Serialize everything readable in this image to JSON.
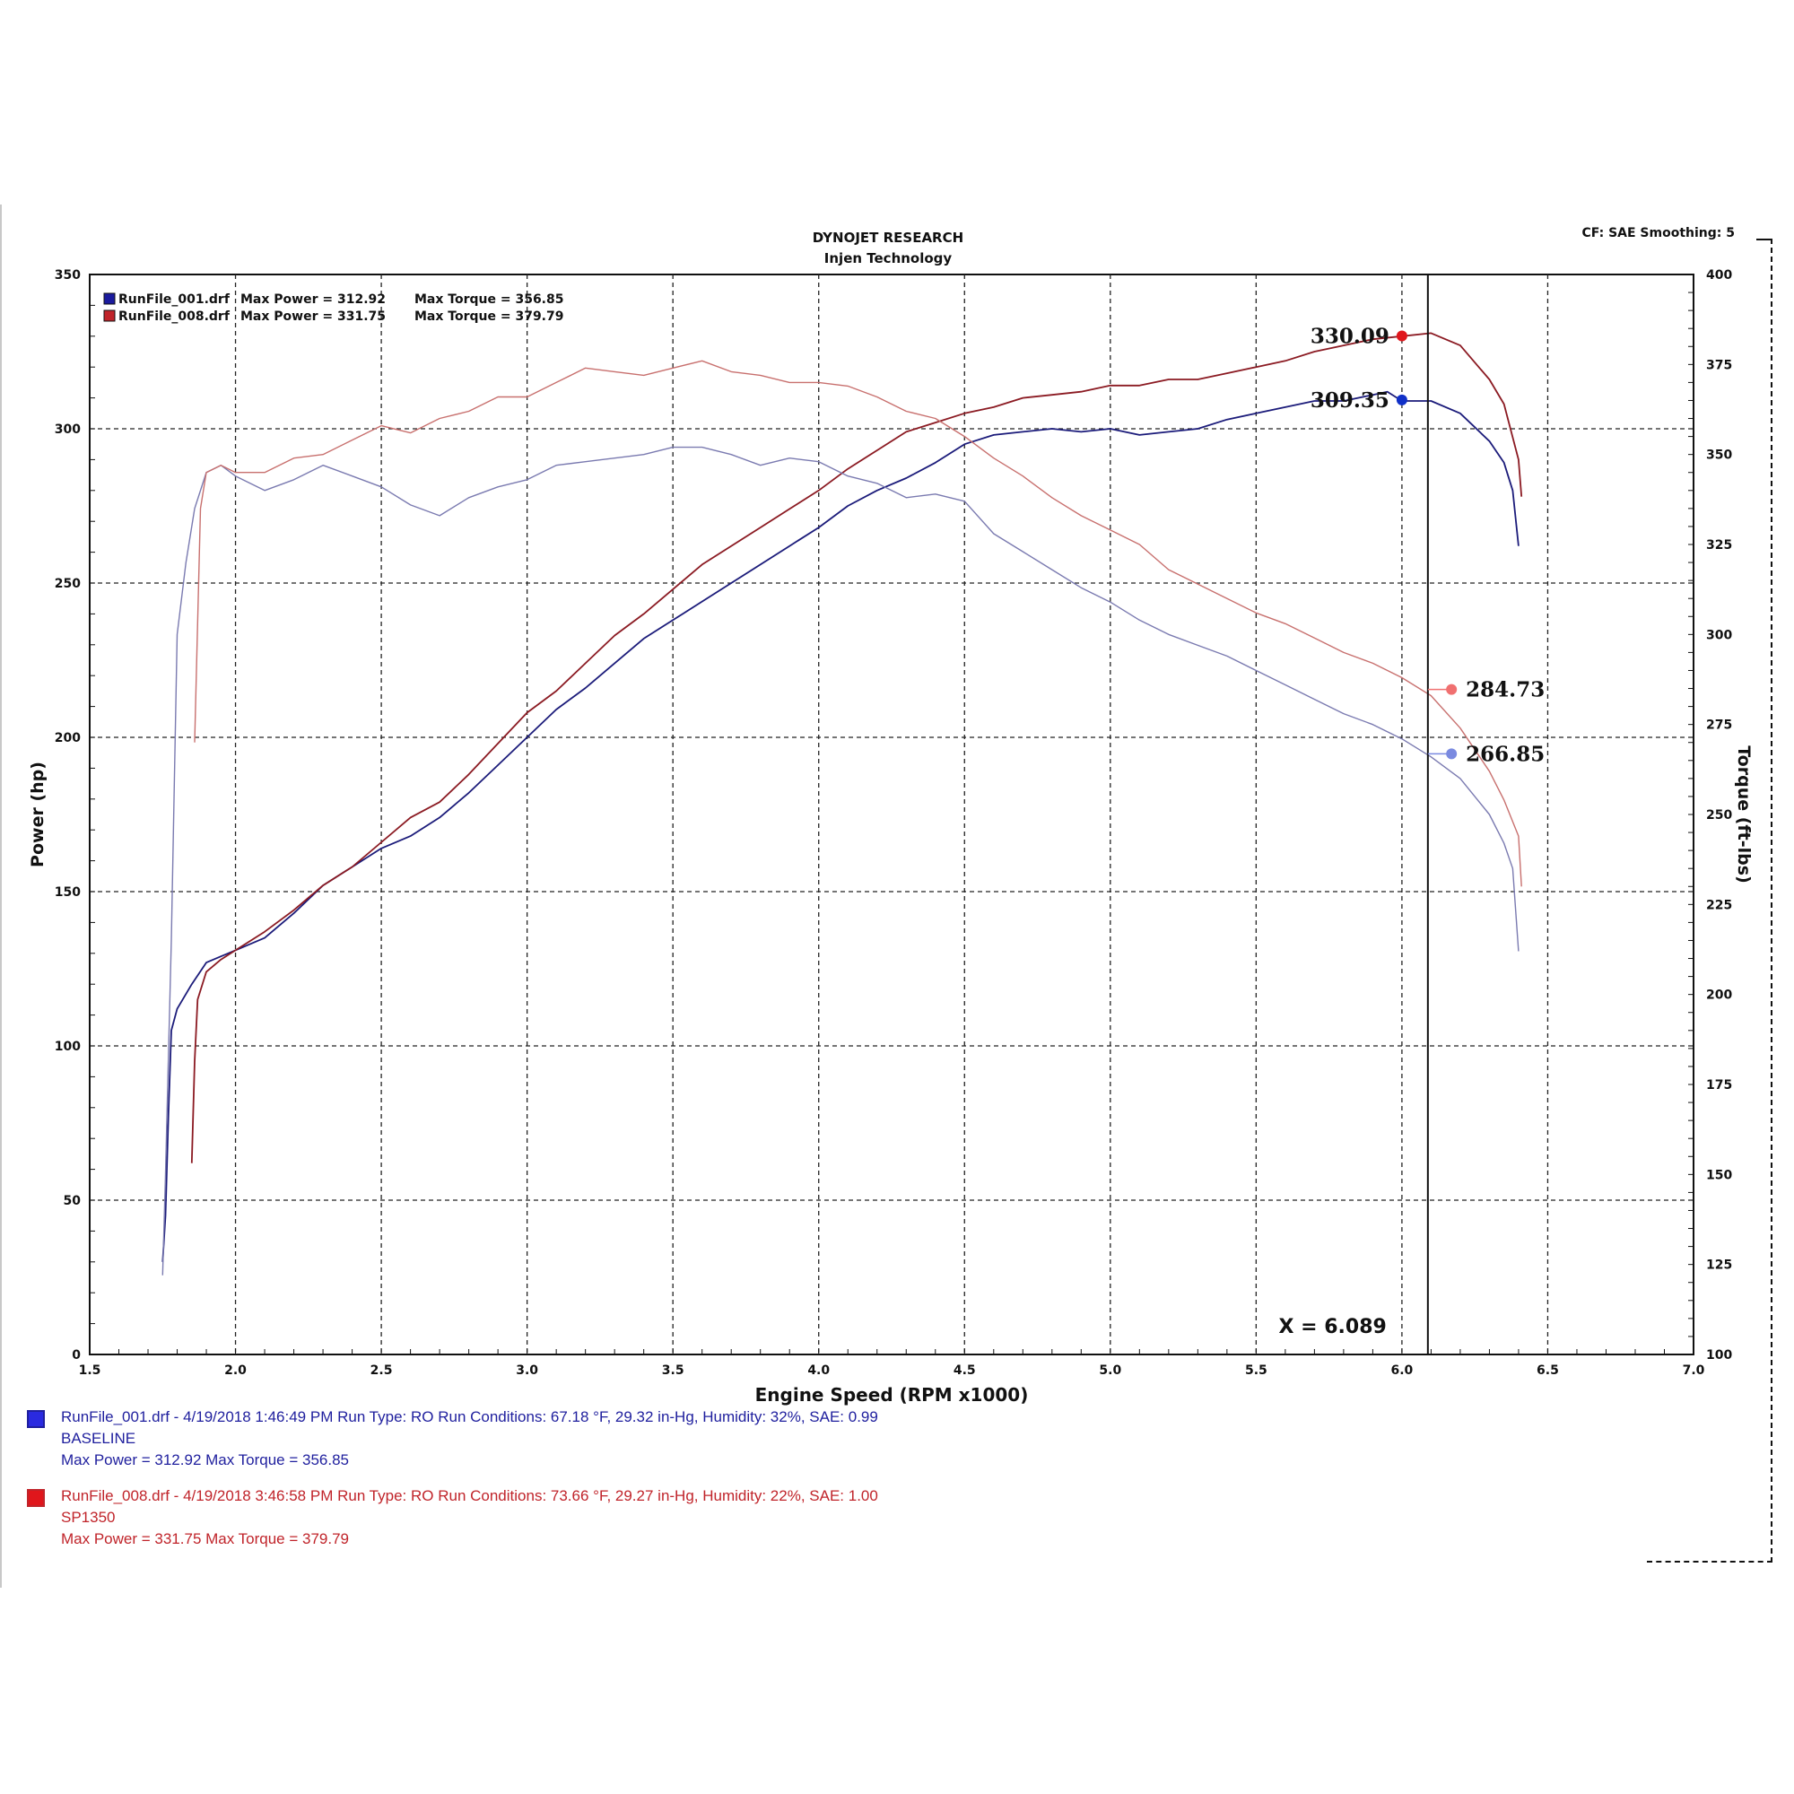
{
  "header": {
    "title": "DYNOJET RESEARCH",
    "subtitle": "Injen Technology",
    "cf_smoothing": "CF: SAE  Smoothing: 5"
  },
  "colors": {
    "baseline_power": "#1b1b7a",
    "baseline_torque": "#7a7ab0",
    "sp1350_power": "#8b1a22",
    "sp1350_torque": "#c8706e",
    "marker_red": "#e0161c",
    "marker_blue": "#1030c8",
    "marker_salmon": "#f07070",
    "marker_lightblue": "#7a8ae0"
  },
  "legend": [
    {
      "file": "RunFile_001.drf",
      "power_text": "Max Power = 312.92",
      "torque_text": "Max Torque = 356.85",
      "color": "#1b1b9e"
    },
    {
      "file": "RunFile_008.drf",
      "power_text": "Max Power = 331.75",
      "torque_text": "Max Torque = 379.79",
      "color": "#c0242a"
    }
  ],
  "annotations": {
    "power_sp1350": "330.09",
    "power_baseline": "309.35",
    "torque_sp1350": "284.73",
    "torque_baseline": "266.85",
    "cursor_label": "X = 6.089"
  },
  "chart_data": {
    "type": "line",
    "xlabel": "Engine Speed (RPM x1000)",
    "ylabel": "Power (hp)",
    "y2label": "Torque (ft-lbs)",
    "xlim": [
      1.5,
      7.0
    ],
    "ylim": [
      0,
      350
    ],
    "y2lim": [
      100,
      400
    ],
    "x_ticks": [
      "1.5",
      "2.0",
      "2.5",
      "3.0",
      "3.5",
      "4.0",
      "4.5",
      "5.0",
      "5.5",
      "6.0",
      "6.5",
      "7.0"
    ],
    "y_ticks": [
      "0",
      "50",
      "100",
      "150",
      "200",
      "250",
      "300",
      "350"
    ],
    "y2_ticks": [
      "100",
      "125",
      "150",
      "175",
      "200",
      "225",
      "250",
      "275",
      "300",
      "325",
      "350",
      "375",
      "400"
    ],
    "grid": true,
    "legend_position": "top-left",
    "cursor_x": 6.089,
    "series": [
      {
        "name": "RunFile_001.drf",
        "axis": "power",
        "points": [
          [
            1.75,
            30
          ],
          [
            1.76,
            45
          ],
          [
            1.77,
            78
          ],
          [
            1.78,
            105
          ],
          [
            1.8,
            112
          ],
          [
            1.85,
            120
          ],
          [
            1.9,
            127
          ],
          [
            1.95,
            129
          ],
          [
            2.0,
            131
          ],
          [
            2.1,
            135
          ],
          [
            2.2,
            143
          ],
          [
            2.3,
            152
          ],
          [
            2.4,
            158
          ],
          [
            2.5,
            164
          ],
          [
            2.6,
            168
          ],
          [
            2.7,
            174
          ],
          [
            2.8,
            182
          ],
          [
            2.9,
            191
          ],
          [
            3.0,
            200
          ],
          [
            3.1,
            209
          ],
          [
            3.2,
            216
          ],
          [
            3.3,
            224
          ],
          [
            3.4,
            232
          ],
          [
            3.5,
            238
          ],
          [
            3.6,
            244
          ],
          [
            3.7,
            250
          ],
          [
            3.8,
            256
          ],
          [
            3.9,
            262
          ],
          [
            4.0,
            268
          ],
          [
            4.1,
            275
          ],
          [
            4.2,
            280
          ],
          [
            4.3,
            284
          ],
          [
            4.4,
            289
          ],
          [
            4.5,
            295
          ],
          [
            4.6,
            298
          ],
          [
            4.7,
            299
          ],
          [
            4.8,
            300
          ],
          [
            4.9,
            299
          ],
          [
            5.0,
            300
          ],
          [
            5.1,
            298
          ],
          [
            5.2,
            299
          ],
          [
            5.3,
            300
          ],
          [
            5.4,
            303
          ],
          [
            5.5,
            305
          ],
          [
            5.6,
            307
          ],
          [
            5.7,
            309
          ],
          [
            5.8,
            309
          ],
          [
            5.9,
            311
          ],
          [
            5.95,
            312
          ],
          [
            6.0,
            309
          ],
          [
            6.1,
            309
          ],
          [
            6.2,
            305
          ],
          [
            6.3,
            296
          ],
          [
            6.35,
            289
          ],
          [
            6.38,
            280
          ],
          [
            6.4,
            262
          ]
        ]
      },
      {
        "name": "RunFile_008.drf",
        "axis": "power",
        "points": [
          [
            1.85,
            62
          ],
          [
            1.86,
            95
          ],
          [
            1.87,
            115
          ],
          [
            1.9,
            124
          ],
          [
            1.95,
            128
          ],
          [
            2.0,
            131
          ],
          [
            2.1,
            137
          ],
          [
            2.2,
            144
          ],
          [
            2.3,
            152
          ],
          [
            2.4,
            158
          ],
          [
            2.5,
            166
          ],
          [
            2.6,
            174
          ],
          [
            2.7,
            179
          ],
          [
            2.8,
            188
          ],
          [
            2.9,
            198
          ],
          [
            3.0,
            208
          ],
          [
            3.1,
            215
          ],
          [
            3.2,
            224
          ],
          [
            3.3,
            233
          ],
          [
            3.4,
            240
          ],
          [
            3.5,
            248
          ],
          [
            3.6,
            256
          ],
          [
            3.7,
            262
          ],
          [
            3.8,
            268
          ],
          [
            3.9,
            274
          ],
          [
            4.0,
            280
          ],
          [
            4.1,
            287
          ],
          [
            4.2,
            293
          ],
          [
            4.3,
            299
          ],
          [
            4.4,
            302
          ],
          [
            4.5,
            305
          ],
          [
            4.6,
            307
          ],
          [
            4.7,
            310
          ],
          [
            4.8,
            311
          ],
          [
            4.9,
            312
          ],
          [
            5.0,
            314
          ],
          [
            5.1,
            314
          ],
          [
            5.2,
            316
          ],
          [
            5.3,
            316
          ],
          [
            5.4,
            318
          ],
          [
            5.5,
            320
          ],
          [
            5.6,
            322
          ],
          [
            5.7,
            325
          ],
          [
            5.8,
            327
          ],
          [
            5.9,
            329
          ],
          [
            6.0,
            330
          ],
          [
            6.1,
            331
          ],
          [
            6.2,
            327
          ],
          [
            6.3,
            316
          ],
          [
            6.35,
            308
          ],
          [
            6.4,
            290
          ],
          [
            6.41,
            278
          ]
        ]
      },
      {
        "name": "RunFile_001.drf",
        "axis": "torque",
        "points": [
          [
            1.75,
            122
          ],
          [
            1.76,
            150
          ],
          [
            1.78,
            215
          ],
          [
            1.8,
            300
          ],
          [
            1.83,
            320
          ],
          [
            1.86,
            335
          ],
          [
            1.9,
            345
          ],
          [
            1.95,
            347
          ],
          [
            2.0,
            344
          ],
          [
            2.1,
            340
          ],
          [
            2.2,
            343
          ],
          [
            2.3,
            347
          ],
          [
            2.4,
            344
          ],
          [
            2.5,
            341
          ],
          [
            2.6,
            336
          ],
          [
            2.7,
            333
          ],
          [
            2.8,
            338
          ],
          [
            2.9,
            341
          ],
          [
            3.0,
            343
          ],
          [
            3.1,
            347
          ],
          [
            3.2,
            348
          ],
          [
            3.3,
            349
          ],
          [
            3.4,
            350
          ],
          [
            3.5,
            352
          ],
          [
            3.6,
            352
          ],
          [
            3.7,
            350
          ],
          [
            3.8,
            347
          ],
          [
            3.9,
            349
          ],
          [
            4.0,
            348
          ],
          [
            4.1,
            344
          ],
          [
            4.2,
            342
          ],
          [
            4.3,
            338
          ],
          [
            4.4,
            339
          ],
          [
            4.5,
            337
          ],
          [
            4.6,
            328
          ],
          [
            4.7,
            323
          ],
          [
            4.8,
            318
          ],
          [
            4.9,
            313
          ],
          [
            5.0,
            309
          ],
          [
            5.1,
            304
          ],
          [
            5.2,
            300
          ],
          [
            5.3,
            297
          ],
          [
            5.4,
            294
          ],
          [
            5.5,
            290
          ],
          [
            5.6,
            286
          ],
          [
            5.7,
            282
          ],
          [
            5.8,
            278
          ],
          [
            5.9,
            275
          ],
          [
            6.0,
            271
          ],
          [
            6.1,
            266
          ],
          [
            6.2,
            260
          ],
          [
            6.3,
            250
          ],
          [
            6.35,
            242
          ],
          [
            6.38,
            235
          ],
          [
            6.4,
            212
          ]
        ]
      },
      {
        "name": "RunFile_008.drf",
        "axis": "torque",
        "points": [
          [
            1.86,
            270
          ],
          [
            1.88,
            335
          ],
          [
            1.9,
            345
          ],
          [
            1.95,
            347
          ],
          [
            2.0,
            345
          ],
          [
            2.1,
            345
          ],
          [
            2.2,
            349
          ],
          [
            2.3,
            350
          ],
          [
            2.4,
            354
          ],
          [
            2.5,
            358
          ],
          [
            2.6,
            356
          ],
          [
            2.7,
            360
          ],
          [
            2.8,
            362
          ],
          [
            2.9,
            366
          ],
          [
            3.0,
            366
          ],
          [
            3.1,
            370
          ],
          [
            3.2,
            374
          ],
          [
            3.3,
            373
          ],
          [
            3.4,
            372
          ],
          [
            3.5,
            374
          ],
          [
            3.6,
            376
          ],
          [
            3.7,
            373
          ],
          [
            3.8,
            372
          ],
          [
            3.9,
            370
          ],
          [
            4.0,
            370
          ],
          [
            4.1,
            369
          ],
          [
            4.2,
            366
          ],
          [
            4.3,
            362
          ],
          [
            4.4,
            360
          ],
          [
            4.5,
            355
          ],
          [
            4.6,
            349
          ],
          [
            4.7,
            344
          ],
          [
            4.8,
            338
          ],
          [
            4.9,
            333
          ],
          [
            5.0,
            329
          ],
          [
            5.1,
            325
          ],
          [
            5.2,
            318
          ],
          [
            5.3,
            314
          ],
          [
            5.4,
            310
          ],
          [
            5.5,
            306
          ],
          [
            5.6,
            303
          ],
          [
            5.7,
            299
          ],
          [
            5.8,
            295
          ],
          [
            5.9,
            292
          ],
          [
            6.0,
            288
          ],
          [
            6.1,
            283
          ],
          [
            6.2,
            274
          ],
          [
            6.3,
            262
          ],
          [
            6.35,
            254
          ],
          [
            6.4,
            244
          ],
          [
            6.41,
            230
          ]
        ]
      }
    ],
    "markers": [
      {
        "x": 6.0,
        "axis": "power",
        "value": 330.09,
        "color": "#e0161c",
        "label": "330.09"
      },
      {
        "x": 6.0,
        "axis": "power",
        "value": 309.35,
        "color": "#1030c8",
        "label": "309.35"
      },
      {
        "x": 6.17,
        "axis": "torque",
        "value": 284.73,
        "color": "#f07070",
        "label": "284.73"
      },
      {
        "x": 6.17,
        "axis": "torque",
        "value": 266.85,
        "color": "#7a8ae0",
        "label": "266.85"
      }
    ]
  },
  "footer": {
    "runs": [
      {
        "color": "#1f1f9e",
        "swatch": "#2a2ae0",
        "line1": "RunFile_001.drf - 4/19/2018 1:46:49 PM  Run Type: RO  Run Conditions: 67.18 °F, 29.32 in-Hg,  Humidity:  32%, SAE: 0.99",
        "line2": "BASELINE",
        "line3": "Max Power = 312.92  Max Torque = 356.85"
      },
      {
        "color": "#c0242a",
        "swatch": "#e0161c",
        "line1": "RunFile_008.drf - 4/19/2018 3:46:58 PM  Run Type: RO  Run Conditions: 73.66 °F, 29.27 in-Hg,  Humidity:  22%, SAE: 1.00",
        "line2": "SP1350",
        "line3": "Max Power = 331.75  Max Torque = 379.79"
      }
    ]
  }
}
